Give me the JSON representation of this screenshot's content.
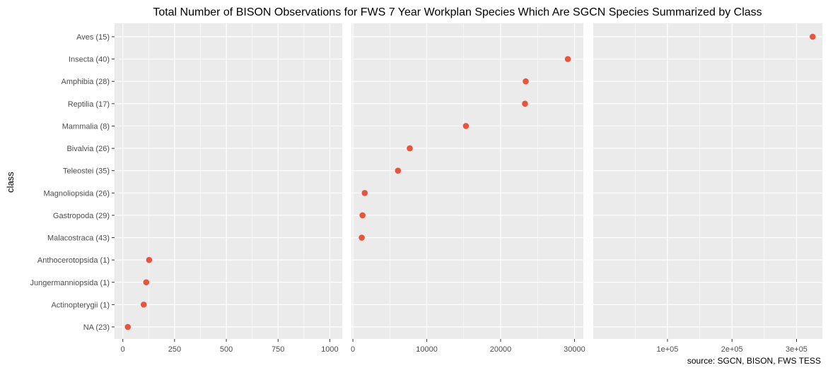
{
  "chart_data": {
    "type": "scatter",
    "title": "Total Number of BISON Observations for FWS 7 Year Workplan Species Which Are SGCN Species Summarized by Class",
    "ylabel": "class",
    "caption": "source: SGCN, BISON, FWS TESS",
    "point_color": "#e8553d",
    "panel_background": "#ebebeb",
    "grid": true,
    "facets": "free_x",
    "categories": [
      "Aves (15)",
      "Insecta (40)",
      "Amphibia (28)",
      "Reptilia (17)",
      "Mammalia (8)",
      "Bivalvia (26)",
      "Teleostei (35)",
      "Magnoliopsida (26)",
      "Gastropoda (29)",
      "Malacostraca (43)",
      "Anthocerotopsida (1)",
      "Jungermanniopsida (1)",
      "Actinopterygii (1)",
      "NA (23)"
    ],
    "panels": [
      {
        "xlim": [
          -40,
          1060
        ],
        "ticks": [
          0,
          250,
          500,
          750,
          1000
        ],
        "tick_labels": [
          "0",
          "250",
          "500",
          "750",
          "1000"
        ],
        "minor_ticks": [
          125,
          375,
          625,
          875
        ],
        "points": [
          {
            "category": "Anthocerotopsida (1)",
            "value": 127
          },
          {
            "category": "Jungermanniopsida (1)",
            "value": 113
          },
          {
            "category": "Actinopterygii (1)",
            "value": 101
          },
          {
            "category": "NA (23)",
            "value": 24
          }
        ]
      },
      {
        "xlim": [
          -200,
          31200
        ],
        "ticks": [
          0,
          10000,
          20000,
          30000
        ],
        "tick_labels": [
          "0",
          "10000",
          "20000",
          "30000"
        ],
        "minor_ticks": [
          5000,
          15000,
          25000
        ],
        "points": [
          {
            "category": "Insecta (40)",
            "value": 29100
          },
          {
            "category": "Amphibia (28)",
            "value": 23400
          },
          {
            "category": "Reptilia (17)",
            "value": 23300
          },
          {
            "category": "Mammalia (8)",
            "value": 15300
          },
          {
            "category": "Bivalvia (26)",
            "value": 7700
          },
          {
            "category": "Teleostei (35)",
            "value": 6100
          },
          {
            "category": "Magnoliopsida (26)",
            "value": 1600
          },
          {
            "category": "Gastropoda (29)",
            "value": 1300
          },
          {
            "category": "Malacostraca (43)",
            "value": 1200
          }
        ]
      },
      {
        "xlim": [
          -15000,
          340000
        ],
        "ticks": [
          100000,
          200000,
          300000
        ],
        "tick_labels": [
          "1e+05",
          "2e+05",
          "3e+05"
        ],
        "minor_ticks": [
          50000,
          150000,
          250000
        ],
        "points": [
          {
            "category": "Aves (15)",
            "value": 325000
          }
        ]
      }
    ]
  }
}
